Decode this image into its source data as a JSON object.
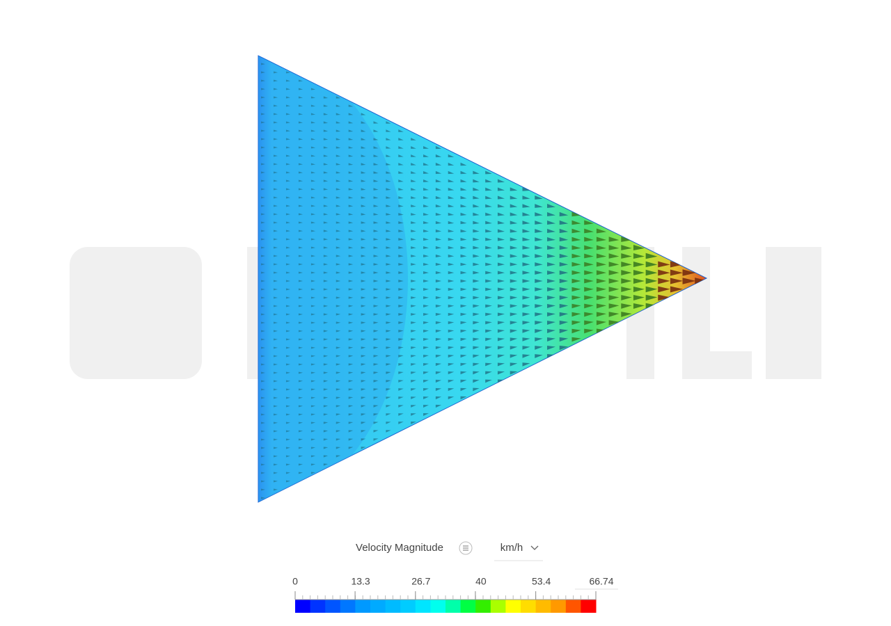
{
  "legend": {
    "title": "Velocity Magnitude",
    "unit": "km/h",
    "range": [
      0,
      66.74
    ],
    "ticks": [
      0,
      13.3,
      26.7,
      40,
      53.4,
      66.74
    ],
    "colors": [
      "#0000ff",
      "#0033ff",
      "#0055ff",
      "#0077ff",
      "#0099ff",
      "#00aaff",
      "#00bbff",
      "#00ccff",
      "#00e5ff",
      "#00ffee",
      "#00ffaa",
      "#00ff44",
      "#33ee00",
      "#aaff00",
      "#ffff00",
      "#ffdd00",
      "#ffbb00",
      "#ff9900",
      "#ff5500",
      "#ff0000"
    ]
  }
}
